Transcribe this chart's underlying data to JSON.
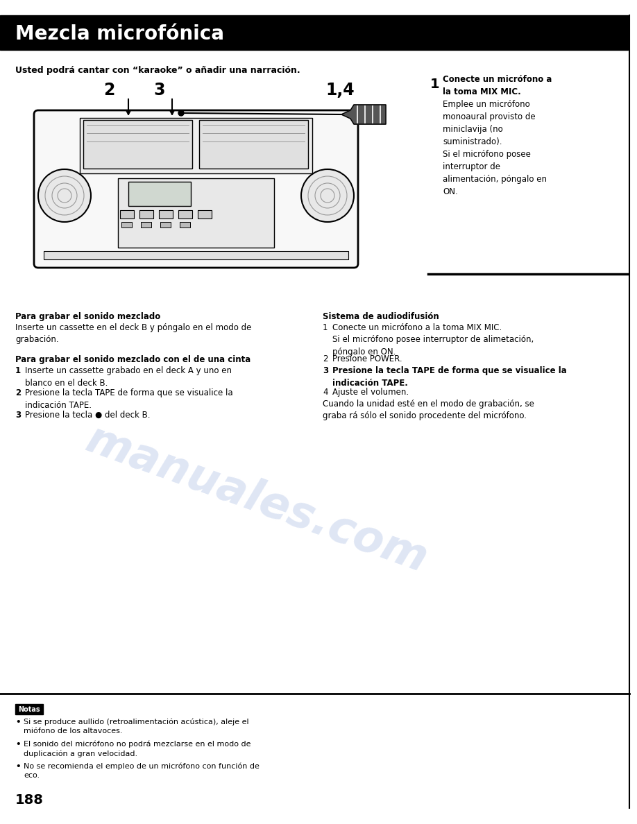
{
  "title": "Mezcla microfónica",
  "title_bg": "#000000",
  "title_color": "#ffffff",
  "page_bg": "#ffffff",
  "page_number": "188",
  "subtitle": "Usted podrá cantar con “karaoke” o añadir una narración.",
  "watermark_line1": "manuales",
  "watermark_line2": ".com",
  "watermark_color": "#b8c8e8",
  "watermark_alpha": 0.45,
  "step1_num": "1",
  "step1_bold": "Conecte un micrófono a\nla toma MIX MIC.",
  "step1_text": "Emplee un micrófono\nmonoaural provisto de\nminiclavija (no\nsuministrado).\nSi el micrófono posee\ninterruptor de\nalimentación, póngalo en\nON.",
  "left_col_title1": "Para grabar el sonido mezclado",
  "left_col_text1": "Inserte un cassette en el deck B y póngalo en el modo de\ngrabación.",
  "left_col_title2": "Para grabar el sonido mezclado con el de una cinta",
  "left_col_num_items2": [
    "1",
    "2",
    "3"
  ],
  "left_col_texts2": [
    "Inserte un cassette grabado en el deck A y uno en\nblanco en el deck B.",
    "Presione la tecla TAPE de forma que se visualice la\nindicación TAPE.",
    "Presione la tecla ● del deck B."
  ],
  "right_col_title": "Sistema de audiodifusión",
  "right_col_nums": [
    "1",
    "2",
    "3",
    "4",
    ""
  ],
  "right_col_texts": [
    "Conecte un micrófono a la toma MIX MIC.\nSi el micrófono posee interruptor de alimetación,\npóngalo en ON.",
    "Presione POWER.",
    "Presione la tecla TAPE de forma que se visualice la\nindicación TAPE.",
    "Ajuste el volumen.",
    "Cuando la unidad esté en el modo de grabación, se\ngraba rá sólo el sonido procedente del micrófono."
  ],
  "right_bold_nums": [
    "3"
  ],
  "notes_title": "Notas",
  "notes": [
    "Si se produce aullido (retroalimentación acústica), aleje el\nmi crófono de los altavoces.",
    "El sonido del micrófono no podrá mezclarse en el modo de\nduplicación a gran velocidad.",
    "No se recomienda el empleo de un micrófono con función de\neco."
  ]
}
